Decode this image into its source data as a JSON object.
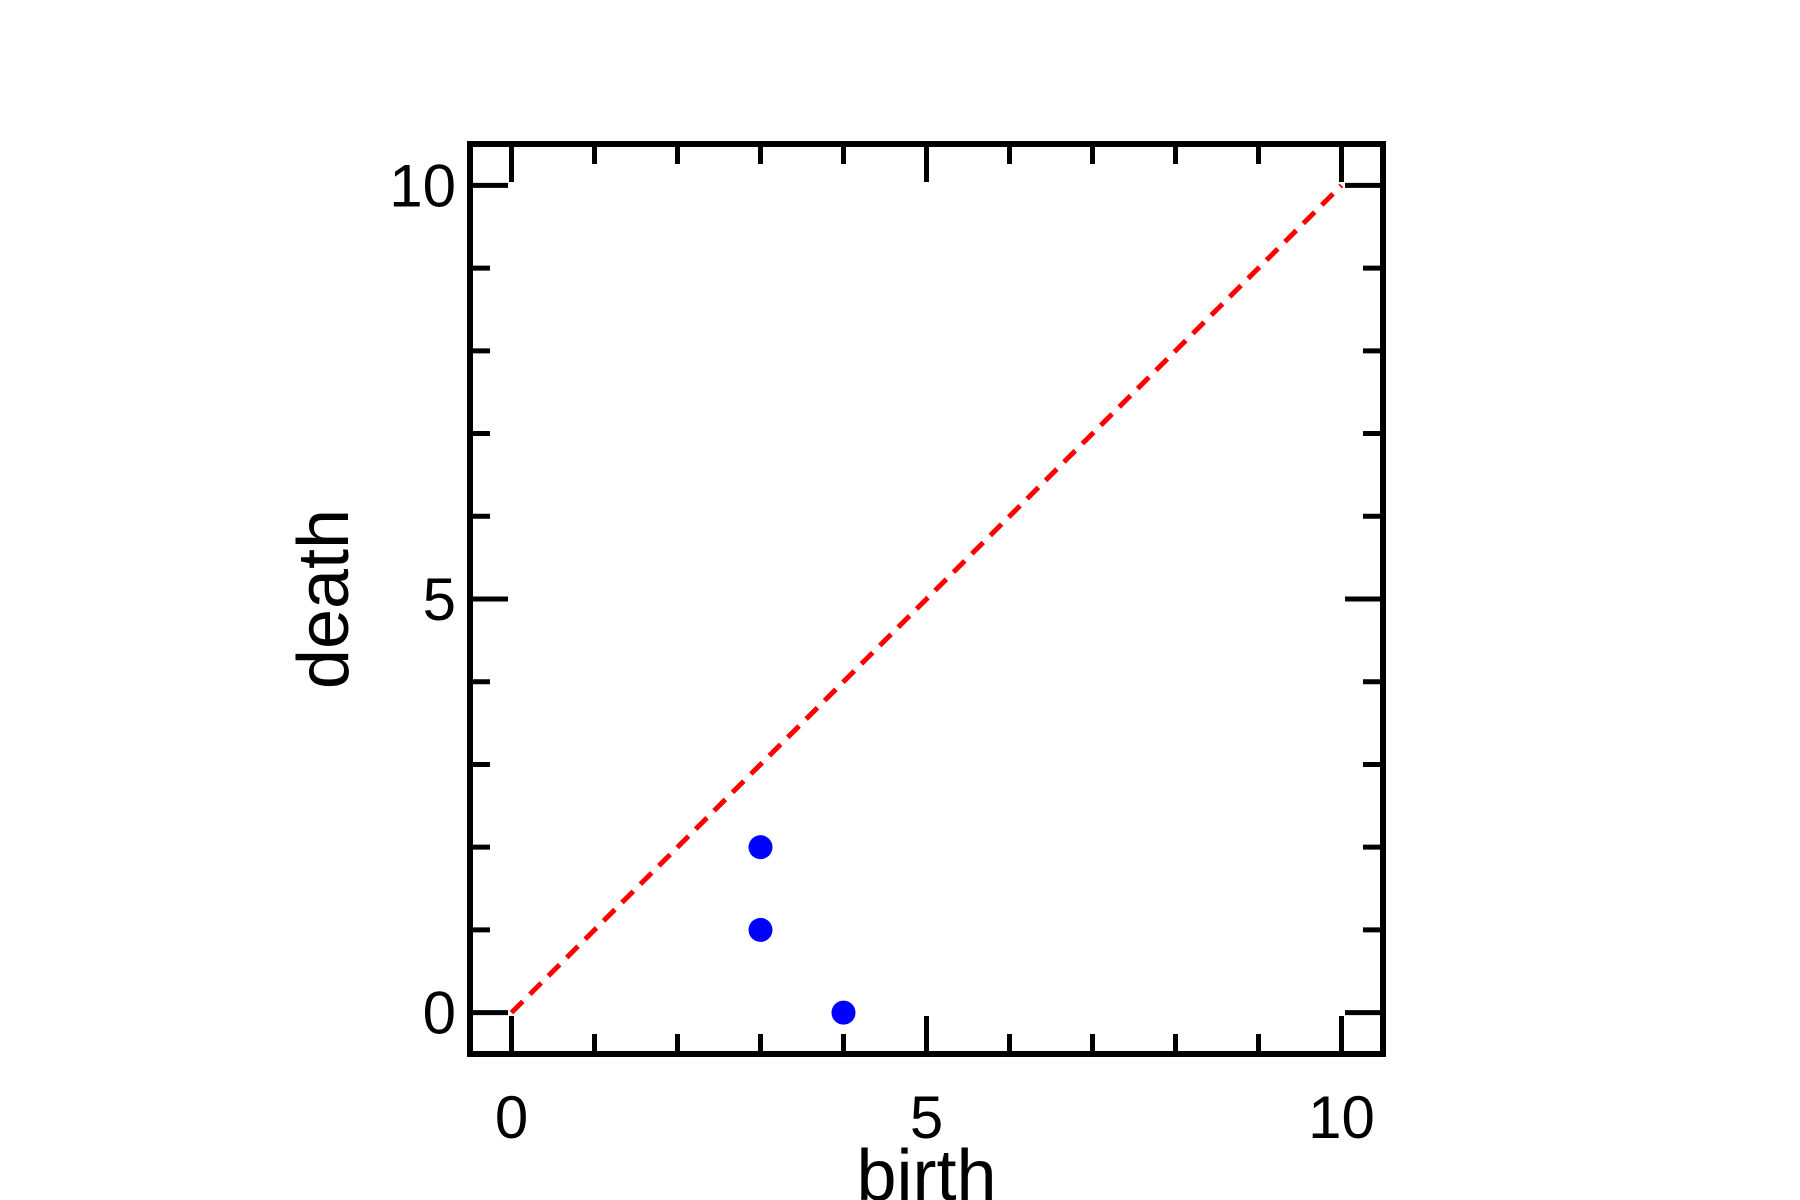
{
  "chart_data": {
    "type": "scatter",
    "title": "",
    "xlabel": "birth",
    "ylabel": "death",
    "xlim": [
      -0.5,
      10.5
    ],
    "ylim": [
      -0.5,
      10.5
    ],
    "x_ticks": [
      0,
      5,
      10
    ],
    "y_ticks": [
      0,
      5,
      10
    ],
    "x_tick_labels": [
      "0",
      "5",
      "10"
    ],
    "y_tick_labels": [
      "0",
      "5",
      "10"
    ],
    "minor_tick_step": 1,
    "grid": false,
    "points": [
      {
        "x": 3,
        "y": 2
      },
      {
        "x": 3,
        "y": 1
      },
      {
        "x": 4,
        "y": 0
      }
    ],
    "reference_line": {
      "from": [
        0,
        0
      ],
      "to": [
        10,
        10
      ],
      "style": "dashed",
      "color": "#ff0000"
    },
    "colors": {
      "points": "#0000ff",
      "diagonal": "#ff0000",
      "axes": "#000000"
    }
  }
}
